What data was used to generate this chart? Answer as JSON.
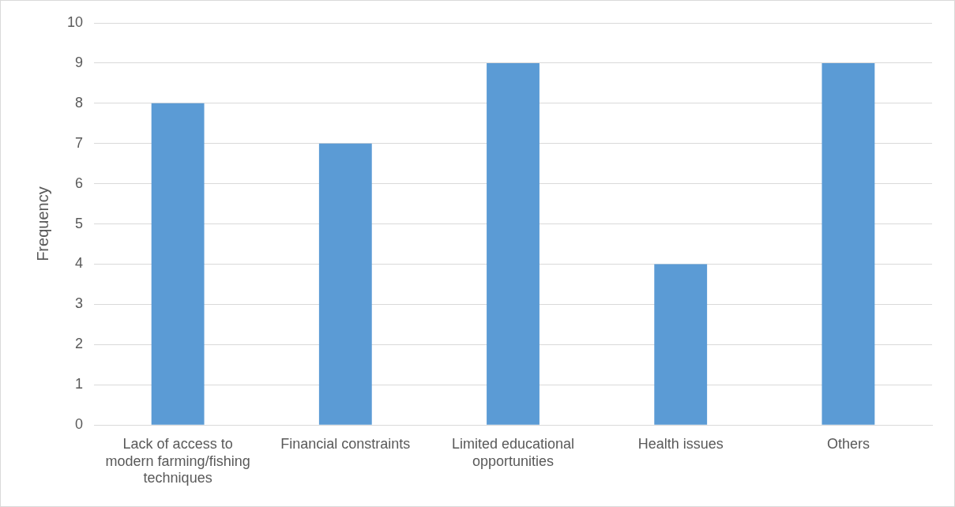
{
  "chart_data": {
    "type": "bar",
    "ylabel": "Frequency",
    "categories": [
      "Lack of access to modern farming/fishing techniques",
      "Financial constraints",
      "Limited educational opportunities",
      "Health issues",
      "Others"
    ],
    "values": [
      8,
      7,
      9,
      4,
      9
    ],
    "color": "#5b9bd5",
    "ylim": [
      0,
      10
    ],
    "yticks": [
      0,
      1,
      2,
      3,
      4,
      5,
      6,
      7,
      8,
      9,
      10
    ],
    "grid": "y",
    "legend": false
  }
}
